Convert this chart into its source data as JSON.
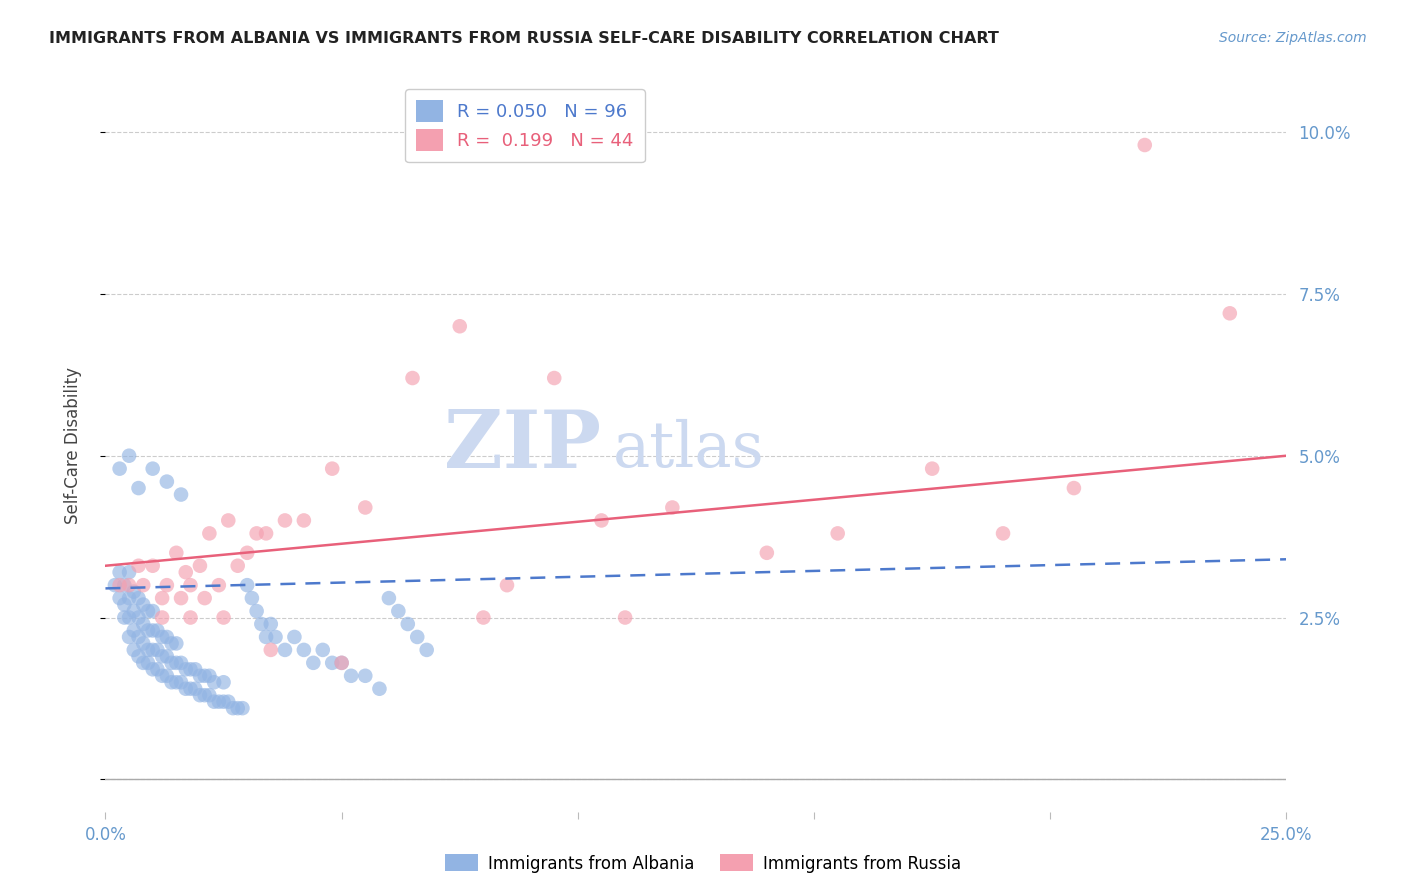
{
  "title": "IMMIGRANTS FROM ALBANIA VS IMMIGRANTS FROM RUSSIA SELF-CARE DISABILITY CORRELATION CHART",
  "source_text": "Source: ZipAtlas.com",
  "ylabel": "Self-Care Disability",
  "xlim": [
    0.0,
    0.25
  ],
  "ylim": [
    -0.005,
    0.108
  ],
  "legend_albania_r": "0.050",
  "legend_albania_n": "96",
  "legend_russia_r": "0.199",
  "legend_russia_n": "44",
  "albania_color": "#92b4e3",
  "russia_color": "#f4a0b0",
  "albania_line_color": "#4d79cc",
  "russia_line_color": "#e8607a",
  "background_color": "#ffffff",
  "watermark_zip": "ZIP",
  "watermark_atlas": "atlas",
  "watermark_color": "#ccd9f0",
  "albania_scatter_x": [
    0.002,
    0.003,
    0.003,
    0.004,
    0.004,
    0.004,
    0.005,
    0.005,
    0.005,
    0.005,
    0.006,
    0.006,
    0.006,
    0.006,
    0.007,
    0.007,
    0.007,
    0.007,
    0.008,
    0.008,
    0.008,
    0.008,
    0.009,
    0.009,
    0.009,
    0.009,
    0.01,
    0.01,
    0.01,
    0.01,
    0.011,
    0.011,
    0.011,
    0.012,
    0.012,
    0.012,
    0.013,
    0.013,
    0.013,
    0.014,
    0.014,
    0.014,
    0.015,
    0.015,
    0.015,
    0.016,
    0.016,
    0.017,
    0.017,
    0.018,
    0.018,
    0.019,
    0.019,
    0.02,
    0.02,
    0.021,
    0.021,
    0.022,
    0.022,
    0.023,
    0.023,
    0.024,
    0.025,
    0.025,
    0.026,
    0.027,
    0.028,
    0.029,
    0.03,
    0.031,
    0.032,
    0.033,
    0.034,
    0.035,
    0.036,
    0.038,
    0.04,
    0.042,
    0.044,
    0.046,
    0.048,
    0.05,
    0.052,
    0.055,
    0.058,
    0.06,
    0.062,
    0.064,
    0.066,
    0.068,
    0.003,
    0.005,
    0.007,
    0.01,
    0.013,
    0.016
  ],
  "albania_scatter_y": [
    0.03,
    0.028,
    0.032,
    0.025,
    0.027,
    0.03,
    0.022,
    0.025,
    0.028,
    0.032,
    0.02,
    0.023,
    0.026,
    0.029,
    0.019,
    0.022,
    0.025,
    0.028,
    0.018,
    0.021,
    0.024,
    0.027,
    0.018,
    0.02,
    0.023,
    0.026,
    0.017,
    0.02,
    0.023,
    0.026,
    0.017,
    0.02,
    0.023,
    0.016,
    0.019,
    0.022,
    0.016,
    0.019,
    0.022,
    0.015,
    0.018,
    0.021,
    0.015,
    0.018,
    0.021,
    0.015,
    0.018,
    0.014,
    0.017,
    0.014,
    0.017,
    0.014,
    0.017,
    0.013,
    0.016,
    0.013,
    0.016,
    0.013,
    0.016,
    0.012,
    0.015,
    0.012,
    0.012,
    0.015,
    0.012,
    0.011,
    0.011,
    0.011,
    0.03,
    0.028,
    0.026,
    0.024,
    0.022,
    0.024,
    0.022,
    0.02,
    0.022,
    0.02,
    0.018,
    0.02,
    0.018,
    0.018,
    0.016,
    0.016,
    0.014,
    0.028,
    0.026,
    0.024,
    0.022,
    0.02,
    0.048,
    0.05,
    0.045,
    0.048,
    0.046,
    0.044
  ],
  "russia_scatter_x": [
    0.003,
    0.005,
    0.007,
    0.008,
    0.01,
    0.012,
    0.013,
    0.015,
    0.016,
    0.017,
    0.018,
    0.02,
    0.021,
    0.022,
    0.024,
    0.026,
    0.028,
    0.03,
    0.032,
    0.034,
    0.038,
    0.042,
    0.048,
    0.055,
    0.065,
    0.075,
    0.085,
    0.095,
    0.105,
    0.12,
    0.14,
    0.155,
    0.175,
    0.19,
    0.205,
    0.22,
    0.238,
    0.012,
    0.018,
    0.025,
    0.035,
    0.05,
    0.08,
    0.11
  ],
  "russia_scatter_y": [
    0.03,
    0.03,
    0.033,
    0.03,
    0.033,
    0.028,
    0.03,
    0.035,
    0.028,
    0.032,
    0.03,
    0.033,
    0.028,
    0.038,
    0.03,
    0.04,
    0.033,
    0.035,
    0.038,
    0.038,
    0.04,
    0.04,
    0.048,
    0.042,
    0.062,
    0.07,
    0.03,
    0.062,
    0.04,
    0.042,
    0.035,
    0.038,
    0.048,
    0.038,
    0.045,
    0.098,
    0.072,
    0.025,
    0.025,
    0.025,
    0.02,
    0.018,
    0.025,
    0.025
  ],
  "albania_trendline_start_y": 0.0295,
  "albania_trendline_end_y": 0.034,
  "russia_trendline_start_y": 0.033,
  "russia_trendline_end_y": 0.05
}
